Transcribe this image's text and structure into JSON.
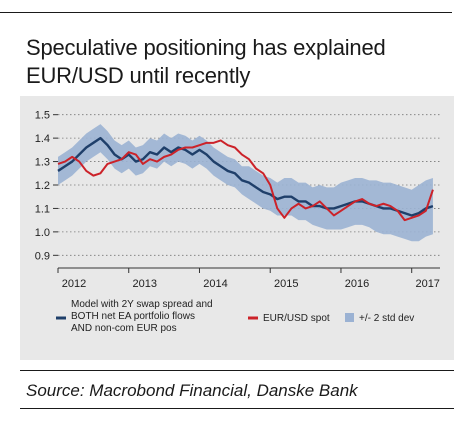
{
  "title": "Speculative positioning has explained EUR/USD until recently",
  "source": "Source: Macrobond Financial, Danske Bank",
  "colors": {
    "model": "#1f3f6a",
    "spot": "#cc2229",
    "band": "#9bb2d3",
    "panel": "#e8e8e8"
  },
  "chart_data": {
    "type": "line",
    "title": "",
    "xlabel": "",
    "ylabel": "",
    "xlim": [
      2012.0,
      2017.4
    ],
    "ylim": [
      0.88,
      1.52
    ],
    "x_ticks": [
      "2012",
      "2013",
      "2014",
      "2015",
      "2016",
      "2017"
    ],
    "y_ticks": [
      0.9,
      1.0,
      1.1,
      1.2,
      1.3,
      1.4,
      1.5
    ],
    "y_tick_labels": [
      "0.9",
      "1.0",
      "1.1",
      "1.2",
      "1.3",
      "1.4",
      "1.5"
    ],
    "grid": "horizontal dotted",
    "legend": {
      "position": "bottom",
      "items": [
        {
          "key": "model",
          "label_lines": [
            "Model with 2Y swap spread and",
            "BOTH net EA portfolio flows",
            "AND non-com EUR pos"
          ]
        },
        {
          "key": "spot",
          "label_lines": [
            "EUR/USD spot"
          ]
        },
        {
          "key": "band",
          "label_lines": [
            "+/- 2 std dev"
          ]
        }
      ]
    },
    "x": [
      2012.0,
      2012.1,
      2012.2,
      2012.3,
      2012.4,
      2012.5,
      2012.6,
      2012.7,
      2012.8,
      2012.9,
      2013.0,
      2013.1,
      2013.2,
      2013.3,
      2013.4,
      2013.5,
      2013.6,
      2013.7,
      2013.8,
      2013.9,
      2014.0,
      2014.1,
      2014.2,
      2014.3,
      2014.4,
      2014.5,
      2014.6,
      2014.7,
      2014.8,
      2014.9,
      2015.0,
      2015.1,
      2015.2,
      2015.3,
      2015.4,
      2015.5,
      2015.6,
      2015.7,
      2015.8,
      2015.9,
      2016.0,
      2016.1,
      2016.2,
      2016.3,
      2016.4,
      2016.5,
      2016.6,
      2016.7,
      2016.8,
      2016.9,
      2017.0,
      2017.1,
      2017.2,
      2017.3
    ],
    "series": [
      {
        "key": "model",
        "name": "Model with 2Y swap spread and BOTH net EA portfolio flows AND non-com EUR pos",
        "values": [
          1.26,
          1.28,
          1.3,
          1.33,
          1.36,
          1.38,
          1.4,
          1.37,
          1.33,
          1.31,
          1.33,
          1.3,
          1.31,
          1.34,
          1.33,
          1.36,
          1.34,
          1.36,
          1.35,
          1.33,
          1.35,
          1.33,
          1.3,
          1.28,
          1.26,
          1.25,
          1.22,
          1.21,
          1.19,
          1.17,
          1.16,
          1.14,
          1.15,
          1.15,
          1.13,
          1.13,
          1.11,
          1.11,
          1.1,
          1.1,
          1.11,
          1.12,
          1.13,
          1.13,
          1.12,
          1.11,
          1.1,
          1.1,
          1.09,
          1.08,
          1.07,
          1.08,
          1.1,
          1.11
        ]
      },
      {
        "key": "spot",
        "name": "EUR/USD spot",
        "values": [
          1.29,
          1.3,
          1.32,
          1.3,
          1.26,
          1.24,
          1.25,
          1.29,
          1.3,
          1.31,
          1.34,
          1.33,
          1.29,
          1.31,
          1.3,
          1.32,
          1.33,
          1.35,
          1.36,
          1.36,
          1.37,
          1.38,
          1.38,
          1.39,
          1.37,
          1.36,
          1.33,
          1.31,
          1.27,
          1.25,
          1.2,
          1.1,
          1.06,
          1.1,
          1.12,
          1.1,
          1.11,
          1.13,
          1.1,
          1.07,
          1.09,
          1.11,
          1.13,
          1.14,
          1.12,
          1.11,
          1.12,
          1.11,
          1.09,
          1.05,
          1.06,
          1.07,
          1.09,
          1.18
        ]
      },
      {
        "key": "band",
        "name": "+/- 2 std dev",
        "lower": [
          1.2,
          1.22,
          1.24,
          1.27,
          1.3,
          1.32,
          1.34,
          1.31,
          1.27,
          1.25,
          1.27,
          1.24,
          1.25,
          1.28,
          1.27,
          1.3,
          1.28,
          1.3,
          1.29,
          1.27,
          1.29,
          1.27,
          1.24,
          1.22,
          1.2,
          1.19,
          1.16,
          1.14,
          1.12,
          1.1,
          1.09,
          1.07,
          1.07,
          1.07,
          1.05,
          1.05,
          1.03,
          1.02,
          1.01,
          1.01,
          1.01,
          1.02,
          1.03,
          1.03,
          1.02,
          1.0,
          0.99,
          0.99,
          0.98,
          0.97,
          0.96,
          0.96,
          0.98,
          0.99
        ],
        "upper": [
          1.32,
          1.34,
          1.36,
          1.39,
          1.42,
          1.44,
          1.46,
          1.43,
          1.39,
          1.37,
          1.39,
          1.36,
          1.37,
          1.4,
          1.39,
          1.42,
          1.4,
          1.42,
          1.41,
          1.39,
          1.41,
          1.39,
          1.36,
          1.34,
          1.32,
          1.31,
          1.28,
          1.28,
          1.26,
          1.24,
          1.23,
          1.21,
          1.23,
          1.23,
          1.21,
          1.21,
          1.19,
          1.2,
          1.19,
          1.19,
          1.21,
          1.22,
          1.23,
          1.23,
          1.22,
          1.22,
          1.21,
          1.21,
          1.2,
          1.19,
          1.18,
          1.2,
          1.22,
          1.23
        ]
      }
    ]
  }
}
